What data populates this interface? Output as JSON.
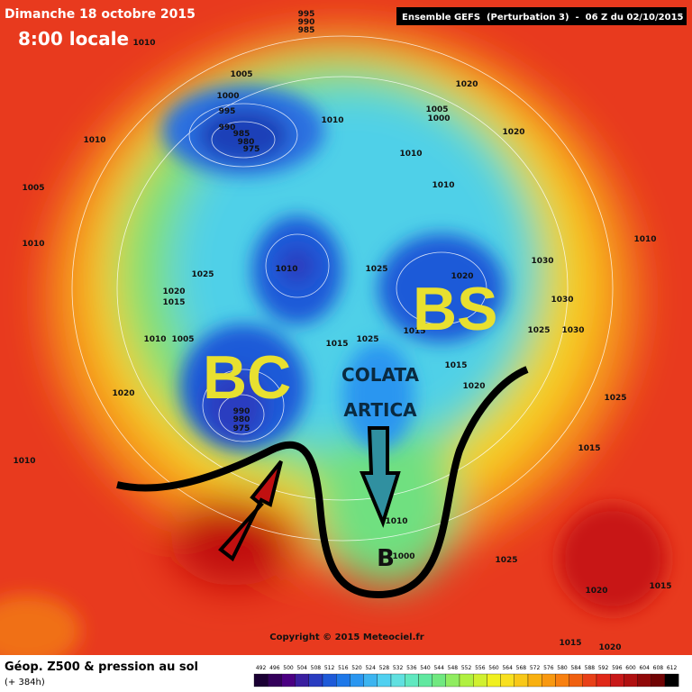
{
  "header": {
    "date": "Dimanche 18 octobre 2015",
    "time": "8:00 locale",
    "model": "Ensemble GEFS  (Perturbation 3)  -  06 Z du 02/10/2015"
  },
  "annotations": [
    "BC",
    "BS",
    "COLATA",
    "ARTICA",
    "B"
  ],
  "isobar_labels": [
    1010,
    995,
    990,
    985,
    1005,
    1000,
    995,
    990,
    985,
    980,
    975,
    1010,
    1020,
    1005,
    1000,
    1010,
    1020,
    1010,
    1005,
    1010,
    1010,
    1010,
    1030,
    1010,
    1025,
    1020,
    1025,
    1020,
    1015,
    1030,
    1010,
    1005,
    1015,
    1015,
    1025,
    1025,
    1030,
    1015,
    1020,
    1020,
    1025,
    1015,
    1010,
    1025,
    1020,
    1015,
    1015,
    1020,
    990,
    980,
    975,
    1000,
    1010
  ],
  "copyright": "Copyright © 2015 Meteociel.fr",
  "legend": {
    "title": "Géop. Z500 & pression au sol",
    "lead": "(+ 384h)",
    "scale": [
      492,
      496,
      500,
      504,
      508,
      512,
      516,
      520,
      524,
      528,
      532,
      536,
      540,
      544,
      548,
      552,
      556,
      560,
      564,
      568,
      572,
      576,
      580,
      584,
      588,
      592,
      596,
      600,
      604,
      608,
      612
    ],
    "colors": [
      "#1a0033",
      "#33005a",
      "#4b0082",
      "#3a1fa0",
      "#2a3cc0",
      "#1e5ad8",
      "#1e78e8",
      "#2a96f0",
      "#3cb4f0",
      "#50d0f0",
      "#60e0e0",
      "#60e8c0",
      "#60e8a0",
      "#70e880",
      "#90ec60",
      "#b0f040",
      "#d0f030",
      "#f0f020",
      "#f8e020",
      "#f8c818",
      "#f8b010",
      "#f89810",
      "#f88010",
      "#f06010",
      "#e84018",
      "#e02818",
      "#c81818",
      "#b01010",
      "#900808",
      "#700404",
      "#000000"
    ]
  }
}
